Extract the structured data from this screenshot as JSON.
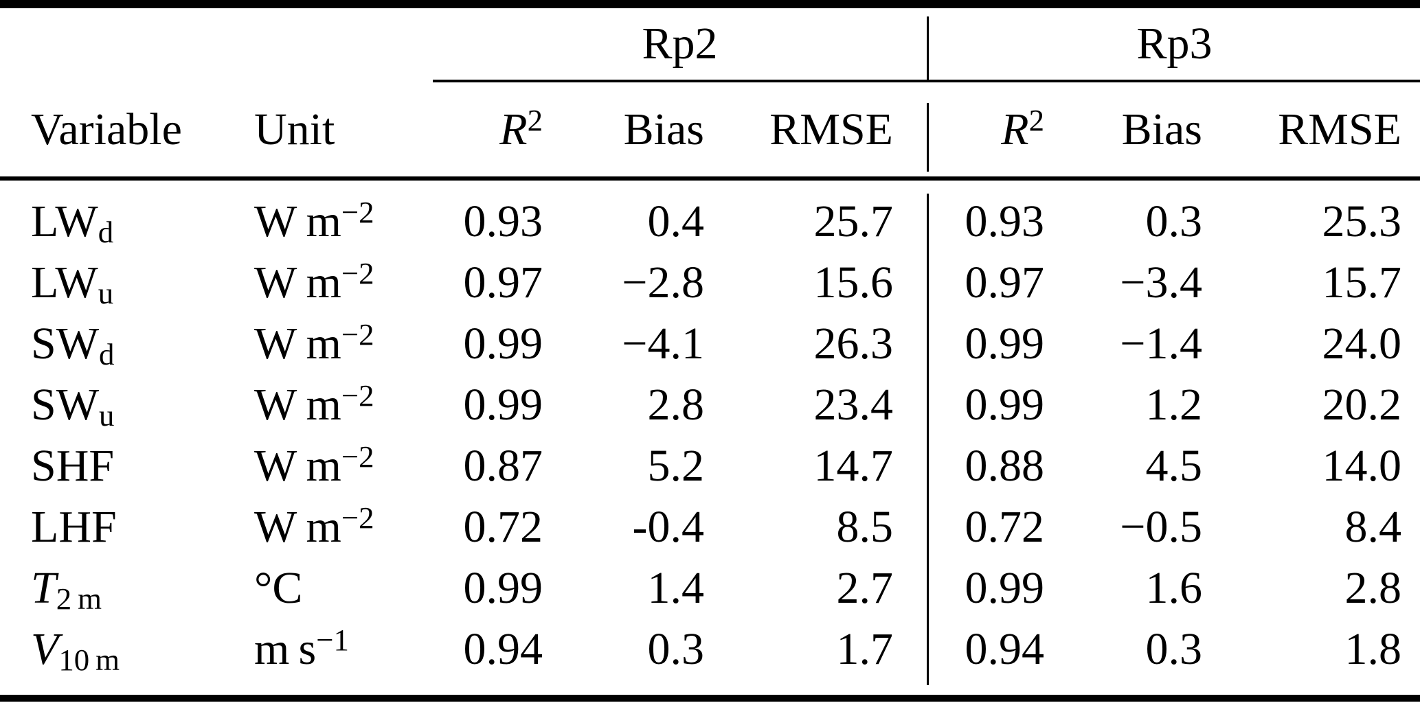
{
  "table": {
    "groups": [
      {
        "label": "Rp2"
      },
      {
        "label": "Rp3"
      }
    ],
    "column_headers": {
      "variable": "Variable",
      "unit": "Unit",
      "r2": [
        {
          "s": "i",
          "v": "R"
        },
        {
          "s": "sup",
          "v": "2"
        }
      ],
      "bias": "Bias",
      "rmse": "RMSE"
    },
    "rows": [
      {
        "variable": [
          {
            "s": "n",
            "v": "LW"
          },
          {
            "s": "sub",
            "v": "d"
          }
        ],
        "unit": [
          {
            "s": "n",
            "v": "W m"
          },
          {
            "s": "sup",
            "v": "−2"
          }
        ],
        "rp2": {
          "r2": "0.93",
          "bias": "0.4",
          "rmse": "25.7"
        },
        "rp3": {
          "r2": "0.93",
          "bias": "0.3",
          "rmse": "25.3"
        }
      },
      {
        "variable": [
          {
            "s": "n",
            "v": "LW"
          },
          {
            "s": "sub",
            "v": "u"
          }
        ],
        "unit": [
          {
            "s": "n",
            "v": "W m"
          },
          {
            "s": "sup",
            "v": "−2"
          }
        ],
        "rp2": {
          "r2": "0.97",
          "bias": "−2.8",
          "rmse": "15.6"
        },
        "rp3": {
          "r2": "0.97",
          "bias": "−3.4",
          "rmse": "15.7"
        }
      },
      {
        "variable": [
          {
            "s": "n",
            "v": "SW"
          },
          {
            "s": "sub",
            "v": "d"
          }
        ],
        "unit": [
          {
            "s": "n",
            "v": "W m"
          },
          {
            "s": "sup",
            "v": "−2"
          }
        ],
        "rp2": {
          "r2": "0.99",
          "bias": "−4.1",
          "rmse": "26.3"
        },
        "rp3": {
          "r2": "0.99",
          "bias": "−1.4",
          "rmse": "24.0"
        }
      },
      {
        "variable": [
          {
            "s": "n",
            "v": "SW"
          },
          {
            "s": "sub",
            "v": "u"
          }
        ],
        "unit": [
          {
            "s": "n",
            "v": "W m"
          },
          {
            "s": "sup",
            "v": "−2"
          }
        ],
        "rp2": {
          "r2": "0.99",
          "bias": "2.8",
          "rmse": "23.4"
        },
        "rp3": {
          "r2": "0.99",
          "bias": "1.2",
          "rmse": "20.2"
        }
      },
      {
        "variable": [
          {
            "s": "n",
            "v": "SHF"
          }
        ],
        "unit": [
          {
            "s": "n",
            "v": "W m"
          },
          {
            "s": "sup",
            "v": "−2"
          }
        ],
        "rp2": {
          "r2": "0.87",
          "bias": "5.2",
          "rmse": "14.7"
        },
        "rp3": {
          "r2": "0.88",
          "bias": "4.5",
          "rmse": "14.0"
        }
      },
      {
        "variable": [
          {
            "s": "n",
            "v": "LHF"
          }
        ],
        "unit": [
          {
            "s": "n",
            "v": "W m"
          },
          {
            "s": "sup",
            "v": "−2"
          }
        ],
        "rp2": {
          "r2": "0.72",
          "bias": "-0.4",
          "rmse": "8.5"
        },
        "rp3": {
          "r2": "0.72",
          "bias": "−0.5",
          "rmse": "8.4"
        }
      },
      {
        "variable": [
          {
            "s": "i",
            "v": "T"
          },
          {
            "s": "sub",
            "v": "2 m"
          }
        ],
        "unit": [
          {
            "s": "n",
            "v": "°C"
          }
        ],
        "rp2": {
          "r2": "0.99",
          "bias": "1.4",
          "rmse": "2.7"
        },
        "rp3": {
          "r2": "0.99",
          "bias": "1.6",
          "rmse": "2.8"
        }
      },
      {
        "variable": [
          {
            "s": "i",
            "v": "V"
          },
          {
            "s": "sub",
            "v": "10 m"
          }
        ],
        "unit": [
          {
            "s": "n",
            "v": "m s"
          },
          {
            "s": "sup",
            "v": "−1"
          }
        ],
        "rp2": {
          "r2": "0.94",
          "bias": "0.3",
          "rmse": "1.7"
        },
        "rp3": {
          "r2": "0.94",
          "bias": "0.3",
          "rmse": "1.8"
        }
      }
    ]
  }
}
